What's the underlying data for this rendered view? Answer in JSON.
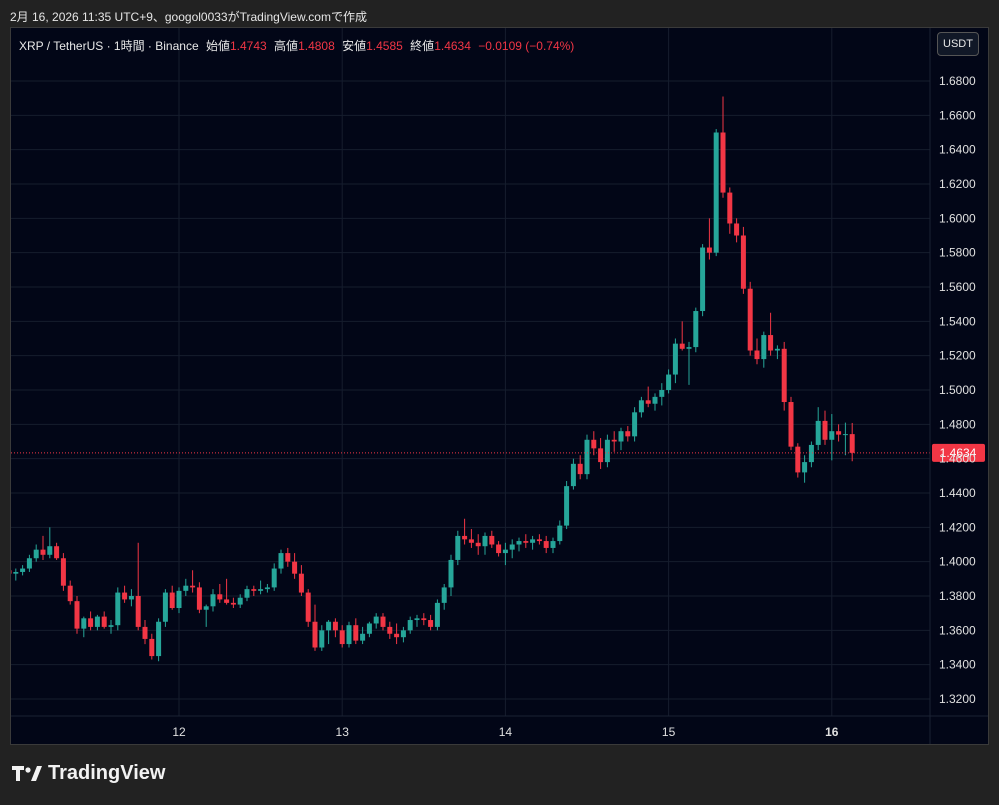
{
  "caption": "2月 16, 2026 11:35 UTC+9、googol0033がTradingView.comで作成",
  "header": {
    "symbol": "XRP / TetherUS · 1時間 · Binance",
    "open_label": "始値",
    "open_value": "1.4743",
    "high_label": "高値",
    "high_value": "1.4808",
    "low_label": "安値",
    "low_value": "1.4585",
    "close_label": "終値",
    "close_value": "1.4634",
    "change": "−0.0109 (−0.74%)"
  },
  "currency_button": "USDT",
  "brand": "TradingView",
  "colors": {
    "up": "#26a69a",
    "down": "#f23645",
    "background": "#020617"
  },
  "chart_data": {
    "type": "candlestick",
    "ylim": [
      1.3,
      1.69
    ],
    "y_ticks": [
      "1.3200",
      "1.3400",
      "1.3600",
      "1.3800",
      "1.4000",
      "1.4200",
      "1.4400",
      "1.4600",
      "1.4800",
      "1.5000",
      "1.5200",
      "1.5400",
      "1.5600",
      "1.5800",
      "1.6000",
      "1.6200",
      "1.6400",
      "1.6600",
      "1.6800"
    ],
    "x_ticks": [
      {
        "label": "12",
        "t": 25,
        "bold": false
      },
      {
        "label": "13",
        "t": 49,
        "bold": false
      },
      {
        "label": "14",
        "t": 73,
        "bold": false
      },
      {
        "label": "15",
        "t": 97,
        "bold": false
      },
      {
        "label": "16",
        "t": 121,
        "bold": true
      }
    ],
    "last_price": "1.4634",
    "candles": [
      [
        1.395,
        1.398,
        1.39,
        1.393
      ],
      [
        1.393,
        1.396,
        1.389,
        1.394
      ],
      [
        1.394,
        1.398,
        1.392,
        1.396
      ],
      [
        1.396,
        1.404,
        1.394,
        1.402
      ],
      [
        1.402,
        1.41,
        1.4,
        1.407
      ],
      [
        1.407,
        1.415,
        1.401,
        1.404
      ],
      [
        1.404,
        1.42,
        1.402,
        1.409
      ],
      [
        1.409,
        1.411,
        1.401,
        1.402
      ],
      [
        1.402,
        1.405,
        1.383,
        1.386
      ],
      [
        1.386,
        1.389,
        1.375,
        1.377
      ],
      [
        1.377,
        1.38,
        1.358,
        1.361
      ],
      [
        1.361,
        1.368,
        1.356,
        1.367
      ],
      [
        1.367,
        1.371,
        1.36,
        1.362
      ],
      [
        1.362,
        1.369,
        1.36,
        1.368
      ],
      [
        1.368,
        1.371,
        1.361,
        1.362
      ],
      [
        1.362,
        1.366,
        1.358,
        1.363
      ],
      [
        1.363,
        1.385,
        1.36,
        1.382
      ],
      [
        1.382,
        1.386,
        1.376,
        1.378
      ],
      [
        1.378,
        1.384,
        1.374,
        1.38
      ],
      [
        1.38,
        1.411,
        1.36,
        1.362
      ],
      [
        1.362,
        1.366,
        1.352,
        1.355
      ],
      [
        1.355,
        1.358,
        1.343,
        1.345
      ],
      [
        1.345,
        1.367,
        1.342,
        1.365
      ],
      [
        1.365,
        1.384,
        1.362,
        1.382
      ],
      [
        1.382,
        1.386,
        1.372,
        1.373
      ],
      [
        1.373,
        1.385,
        1.37,
        1.383
      ],
      [
        1.383,
        1.39,
        1.38,
        1.386
      ],
      [
        1.386,
        1.395,
        1.382,
        1.385
      ],
      [
        1.385,
        1.388,
        1.37,
        1.372
      ],
      [
        1.372,
        1.375,
        1.362,
        1.374
      ],
      [
        1.374,
        1.384,
        1.371,
        1.381
      ],
      [
        1.381,
        1.387,
        1.376,
        1.378
      ],
      [
        1.378,
        1.39,
        1.375,
        1.376
      ],
      [
        1.376,
        1.379,
        1.373,
        1.375
      ],
      [
        1.375,
        1.381,
        1.373,
        1.379
      ],
      [
        1.379,
        1.386,
        1.377,
        1.384
      ],
      [
        1.384,
        1.386,
        1.38,
        1.383
      ],
      [
        1.383,
        1.389,
        1.381,
        1.384
      ],
      [
        1.384,
        1.387,
        1.382,
        1.385
      ],
      [
        1.385,
        1.399,
        1.383,
        1.396
      ],
      [
        1.396,
        1.407,
        1.393,
        1.405
      ],
      [
        1.405,
        1.408,
        1.397,
        1.4
      ],
      [
        1.4,
        1.405,
        1.39,
        1.393
      ],
      [
        1.393,
        1.398,
        1.38,
        1.382
      ],
      [
        1.382,
        1.384,
        1.362,
        1.365
      ],
      [
        1.365,
        1.375,
        1.348,
        1.35
      ],
      [
        1.35,
        1.363,
        1.348,
        1.36
      ],
      [
        1.36,
        1.366,
        1.352,
        1.365
      ],
      [
        1.365,
        1.367,
        1.356,
        1.36
      ],
      [
        1.36,
        1.363,
        1.35,
        1.352
      ],
      [
        1.352,
        1.365,
        1.35,
        1.363
      ],
      [
        1.363,
        1.367,
        1.352,
        1.354
      ],
      [
        1.354,
        1.362,
        1.352,
        1.358
      ],
      [
        1.358,
        1.365,
        1.356,
        1.364
      ],
      [
        1.364,
        1.37,
        1.361,
        1.368
      ],
      [
        1.368,
        1.37,
        1.36,
        1.362
      ],
      [
        1.362,
        1.365,
        1.355,
        1.358
      ],
      [
        1.358,
        1.364,
        1.352,
        1.356
      ],
      [
        1.356,
        1.362,
        1.353,
        1.36
      ],
      [
        1.36,
        1.368,
        1.358,
        1.366
      ],
      [
        1.366,
        1.369,
        1.362,
        1.367
      ],
      [
        1.367,
        1.37,
        1.363,
        1.366
      ],
      [
        1.366,
        1.369,
        1.36,
        1.362
      ],
      [
        1.362,
        1.378,
        1.36,
        1.376
      ],
      [
        1.376,
        1.387,
        1.372,
        1.385
      ],
      [
        1.385,
        1.404,
        1.38,
        1.401
      ],
      [
        1.401,
        1.418,
        1.398,
        1.415
      ],
      [
        1.415,
        1.425,
        1.41,
        1.413
      ],
      [
        1.413,
        1.419,
        1.408,
        1.411
      ],
      [
        1.411,
        1.416,
        1.404,
        1.409
      ],
      [
        1.409,
        1.417,
        1.404,
        1.415
      ],
      [
        1.415,
        1.418,
        1.408,
        1.41
      ],
      [
        1.41,
        1.412,
        1.403,
        1.405
      ],
      [
        1.405,
        1.411,
        1.398,
        1.407
      ],
      [
        1.407,
        1.413,
        1.402,
        1.41
      ],
      [
        1.41,
        1.414,
        1.406,
        1.412
      ],
      [
        1.412,
        1.416,
        1.408,
        1.411
      ],
      [
        1.411,
        1.415,
        1.407,
        1.413
      ],
      [
        1.413,
        1.416,
        1.41,
        1.412
      ],
      [
        1.412,
        1.415,
        1.405,
        1.408
      ],
      [
        1.408,
        1.414,
        1.405,
        1.412
      ],
      [
        1.412,
        1.424,
        1.41,
        1.421
      ],
      [
        1.421,
        1.447,
        1.419,
        1.444
      ],
      [
        1.444,
        1.46,
        1.442,
        1.457
      ],
      [
        1.457,
        1.462,
        1.448,
        1.451
      ],
      [
        1.451,
        1.474,
        1.448,
        1.471
      ],
      [
        1.471,
        1.476,
        1.462,
        1.466
      ],
      [
        1.466,
        1.472,
        1.454,
        1.458
      ],
      [
        1.458,
        1.474,
        1.455,
        1.471
      ],
      [
        1.471,
        1.476,
        1.464,
        1.47
      ],
      [
        1.47,
        1.478,
        1.465,
        1.476
      ],
      [
        1.476,
        1.479,
        1.47,
        1.473
      ],
      [
        1.473,
        1.49,
        1.47,
        1.487
      ],
      [
        1.487,
        1.496,
        1.484,
        1.494
      ],
      [
        1.494,
        1.502,
        1.49,
        1.492
      ],
      [
        1.492,
        1.498,
        1.488,
        1.496
      ],
      [
        1.496,
        1.504,
        1.491,
        1.5
      ],
      [
        1.5,
        1.512,
        1.498,
        1.509
      ],
      [
        1.509,
        1.53,
        1.504,
        1.527
      ],
      [
        1.527,
        1.54,
        1.523,
        1.524
      ],
      [
        1.524,
        1.528,
        1.503,
        1.525
      ],
      [
        1.525,
        1.548,
        1.522,
        1.546
      ],
      [
        1.546,
        1.585,
        1.543,
        1.583
      ],
      [
        1.583,
        1.6,
        1.576,
        1.58
      ],
      [
        1.58,
        1.652,
        1.578,
        1.65
      ],
      [
        1.65,
        1.671,
        1.612,
        1.615
      ],
      [
        1.615,
        1.618,
        1.591,
        1.597
      ],
      [
        1.597,
        1.6,
        1.586,
        1.59
      ],
      [
        1.59,
        1.595,
        1.556,
        1.559
      ],
      [
        1.559,
        1.563,
        1.52,
        1.523
      ],
      [
        1.523,
        1.53,
        1.515,
        1.518
      ],
      [
        1.518,
        1.534,
        1.513,
        1.532
      ],
      [
        1.532,
        1.545,
        1.52,
        1.523
      ],
      [
        1.523,
        1.526,
        1.518,
        1.524
      ],
      [
        1.524,
        1.528,
        1.488,
        1.493
      ],
      [
        1.493,
        1.496,
        1.465,
        1.467
      ],
      [
        1.467,
        1.469,
        1.449,
        1.452
      ],
      [
        1.452,
        1.462,
        1.446,
        1.458
      ],
      [
        1.458,
        1.47,
        1.455,
        1.468
      ],
      [
        1.468,
        1.49,
        1.465,
        1.482
      ],
      [
        1.482,
        1.488,
        1.468,
        1.471
      ],
      [
        1.471,
        1.486,
        1.459,
        1.476
      ],
      [
        1.476,
        1.48,
        1.47,
        1.474
      ],
      [
        1.474,
        1.481,
        1.462,
        1.4743
      ],
      [
        1.4743,
        1.4808,
        1.4585,
        1.4634
      ]
    ]
  }
}
